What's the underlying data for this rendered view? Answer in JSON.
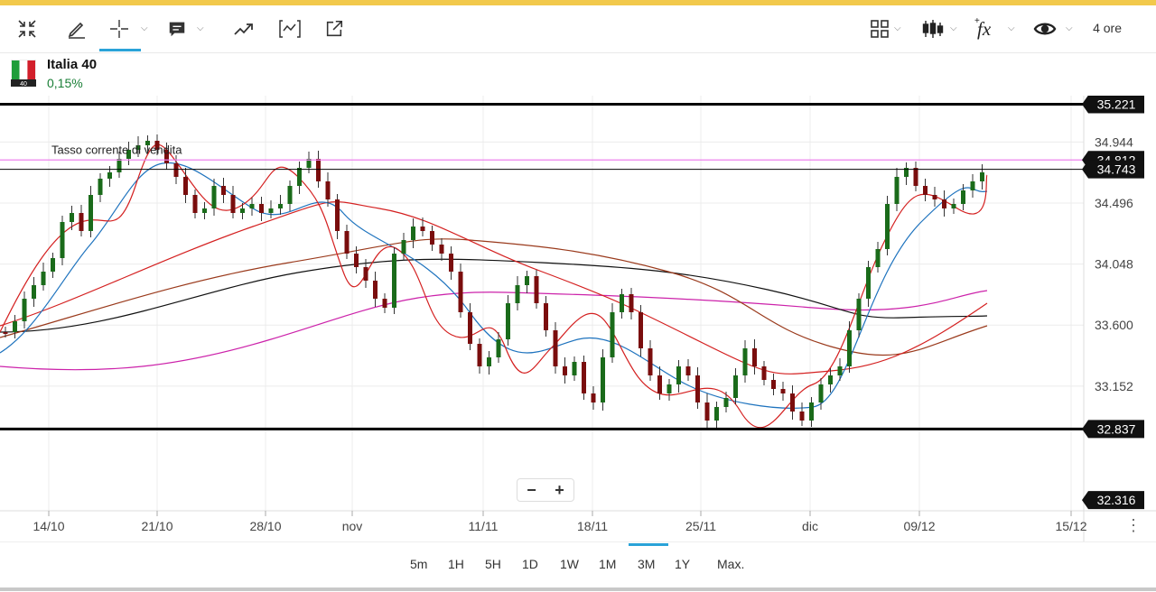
{
  "toolbar": {
    "buttons": [
      {
        "name": "collapse-icon"
      },
      {
        "name": "pencil-icon"
      },
      {
        "name": "crosshair-icon"
      },
      {
        "name": "comment-icon"
      },
      {
        "name": "trend-icon"
      },
      {
        "name": "indicator-frame-icon"
      },
      {
        "name": "external-link-icon"
      },
      {
        "name": "layout-grid-icon"
      },
      {
        "name": "candlestick-icon"
      },
      {
        "name": "fx-icon"
      },
      {
        "name": "eye-icon"
      }
    ],
    "interval": "4 ore"
  },
  "instrument": {
    "name": "Italia 40",
    "change": "0,15%",
    "flag_badge": "40"
  },
  "chart_data": {
    "type": "candlestick",
    "annotation": "Tasso corrente di vendita",
    "price_labels": [
      "34.944",
      "34.496",
      "34.048",
      "33.600",
      "33.152"
    ],
    "price_ticks": [
      34944,
      34496,
      34048,
      33600,
      33152
    ],
    "ylim": [
      32237,
      35284
    ],
    "levels": [
      {
        "value": 35221,
        "label": "35.221",
        "style": "thick"
      },
      {
        "value": 34812,
        "label": "34.812",
        "style": "current"
      },
      {
        "value": 34743,
        "label": "34.743",
        "style": "thin"
      },
      {
        "value": 32837,
        "label": "32.837",
        "style": "thick"
      },
      {
        "value": 32316,
        "label": "32.316",
        "style": "tag"
      }
    ],
    "x_labels": [
      "14/10",
      "21/10",
      "28/10",
      "nov",
      "11/11",
      "18/11",
      "25/11",
      "dic",
      "09/12",
      "15/12"
    ],
    "colors": {
      "up": "#1a6b1a",
      "down": "#7a0d0d",
      "current": "#ee82ee",
      "tag": "#111111"
    }
  },
  "zoom": {
    "minus": "−",
    "plus": "+"
  },
  "periods": {
    "items": [
      "5m",
      "1H",
      "5H",
      "1D",
      "1W",
      "1M",
      "3M",
      "1Y",
      "Max."
    ],
    "active": "3M"
  }
}
